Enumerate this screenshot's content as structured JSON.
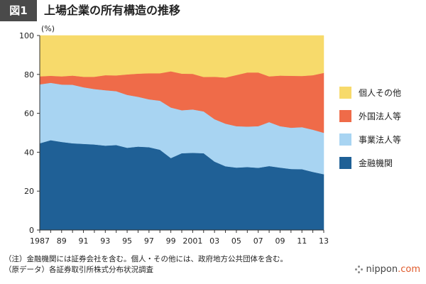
{
  "header": {
    "badge": "図1",
    "title": "上場企業の所有構造の推移"
  },
  "colors": {
    "individual": "#F7DA6B",
    "foreign": "#EF6B49",
    "business": "#A8D4F2",
    "financial": "#1F6096",
    "badge": "#4a4a4a"
  },
  "chart_data": {
    "type": "area",
    "stacked": true,
    "unit_label": "(%)",
    "ylim": [
      0,
      100
    ],
    "yticks": [
      0,
      20,
      40,
      60,
      80,
      100
    ],
    "x": [
      1987,
      1988,
      1989,
      1990,
      1991,
      1992,
      1993,
      1994,
      1995,
      1996,
      1997,
      1998,
      1999,
      2000,
      2001,
      2002,
      2003,
      2004,
      2005,
      2006,
      2007,
      2008,
      2009,
      2010,
      2011,
      2012,
      2013
    ],
    "xtick_labels": [
      {
        "x": 1987,
        "label": "1987"
      },
      {
        "x": 1989,
        "label": "89"
      },
      {
        "x": 1991,
        "label": "91"
      },
      {
        "x": 1993,
        "label": "93"
      },
      {
        "x": 1995,
        "label": "95"
      },
      {
        "x": 1997,
        "label": "97"
      },
      {
        "x": 1999,
        "label": "99"
      },
      {
        "x": 2001,
        "label": "2001"
      },
      {
        "x": 2003,
        "label": "03"
      },
      {
        "x": 2005,
        "label": "05"
      },
      {
        "x": 2007,
        "label": "07"
      },
      {
        "x": 2009,
        "label": "09"
      },
      {
        "x": 2011,
        "label": "11"
      },
      {
        "x": 2013,
        "label": "13"
      }
    ],
    "series": [
      {
        "key": "financial",
        "name": "金融機関",
        "values": [
          44.6,
          46.2,
          45.3,
          44.6,
          44.3,
          44.0,
          43.4,
          43.7,
          42.3,
          42.9,
          42.6,
          41.3,
          37.0,
          39.5,
          39.7,
          39.5,
          35.2,
          32.8,
          32.1,
          32.4,
          32.0,
          32.9,
          32.1,
          31.4,
          31.3,
          29.9,
          28.7
        ]
      },
      {
        "key": "business",
        "name": "事業法人等",
        "values": [
          30.3,
          29.5,
          29.5,
          30.1,
          29.1,
          28.5,
          28.5,
          27.7,
          27.2,
          25.6,
          24.6,
          25.2,
          26.0,
          22.1,
          22.3,
          21.5,
          21.8,
          21.9,
          21.3,
          20.8,
          21.4,
          22.6,
          21.3,
          21.2,
          21.6,
          21.7,
          21.3
        ]
      },
      {
        "key": "foreign",
        "name": "外国法人等",
        "values": [
          4.1,
          3.6,
          4.2,
          4.7,
          5.4,
          6.3,
          7.7,
          8.1,
          10.5,
          11.9,
          13.4,
          14.1,
          18.6,
          18.8,
          18.3,
          17.7,
          21.8,
          23.7,
          26.3,
          27.8,
          27.6,
          23.5,
          26.0,
          26.7,
          26.3,
          28.0,
          30.8
        ]
      },
      {
        "key": "individual",
        "name": "個人その他",
        "values": [
          21.0,
          20.7,
          21.0,
          20.6,
          21.2,
          21.2,
          20.4,
          20.5,
          20.0,
          19.6,
          19.4,
          19.4,
          18.4,
          19.6,
          19.7,
          21.3,
          21.2,
          21.6,
          20.3,
          19.0,
          19.0,
          21.0,
          20.6,
          20.7,
          20.8,
          20.4,
          19.2
        ]
      }
    ],
    "legend_order": [
      "individual",
      "foreign",
      "business",
      "financial"
    ],
    "legend_placement": "right",
    "grid": false
  },
  "notes": [
    "（注）金融機関には証券会社を含む。個人・その他には、政府地方公共団体を含む。",
    "（原データ）各証券取引所株式分布状況調査"
  ],
  "logo": {
    "text_main": "nippon",
    "text_suffix": ".com"
  }
}
